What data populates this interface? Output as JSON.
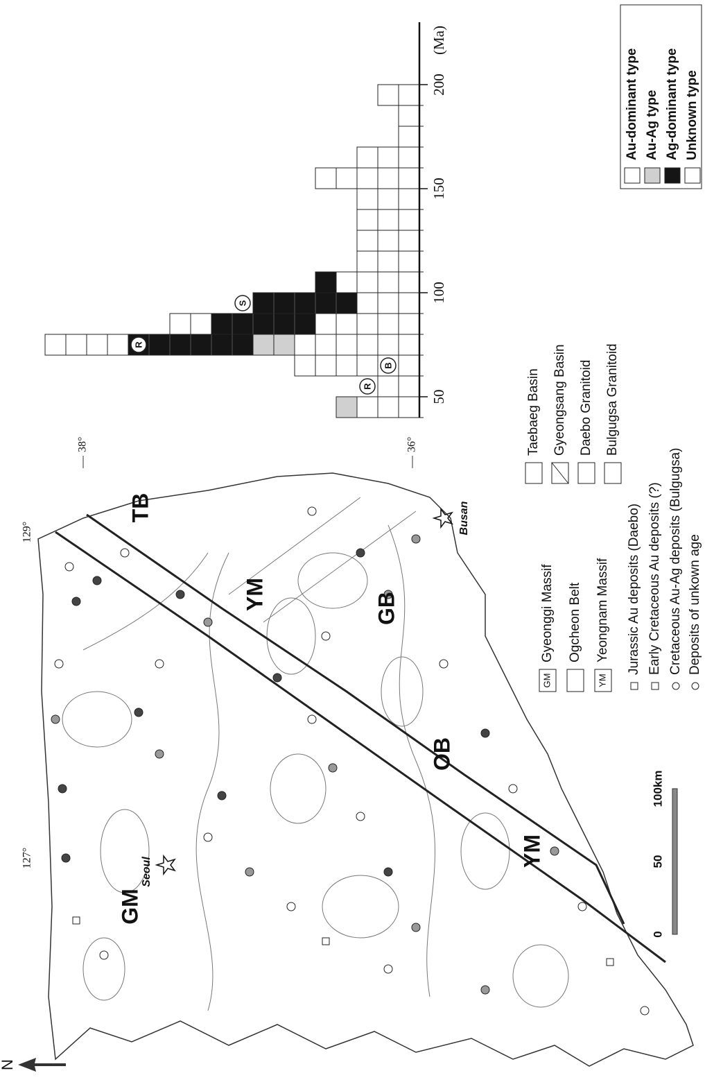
{
  "chart_data": {
    "type": "histogram",
    "xlabel": "(Ma)",
    "bins": [
      40,
      50,
      60,
      70,
      80,
      90,
      100,
      110,
      120,
      130,
      140,
      150,
      160,
      170,
      180,
      190,
      200
    ],
    "xlim": [
      40,
      230
    ],
    "xticks": [
      50,
      100,
      150,
      200
    ],
    "series": [
      {
        "name": "Au-dominant type",
        "color": "#ffffff",
        "values": [
          3,
          2,
          5,
          6,
          5,
          3,
          4,
          3,
          3,
          3,
          3,
          5,
          3,
          1,
          1,
          2
        ]
      },
      {
        "name": "Au-Ag type",
        "color": "#d0d0d0",
        "values": [
          1,
          0,
          0,
          2,
          0,
          0,
          0,
          0,
          0,
          0,
          0,
          0,
          0,
          0,
          0,
          0
        ]
      },
      {
        "name": "Ag-dominant type",
        "color": "#151515",
        "values": [
          0,
          0,
          0,
          6,
          5,
          5,
          1,
          0,
          0,
          0,
          0,
          0,
          0,
          0,
          0,
          0
        ]
      },
      {
        "name": "Unknown type",
        "color": "#ffffff",
        "values": [
          0,
          0,
          1,
          4,
          2,
          0,
          0,
          0,
          0,
          0,
          0,
          0,
          0,
          0,
          0,
          0
        ]
      }
    ],
    "annotations": [
      {
        "text": "R",
        "x": 55,
        "y": 2.5
      },
      {
        "text": "B",
        "x": 65,
        "y": 1.5
      },
      {
        "text": "R",
        "x": 75,
        "y": 13.5
      },
      {
        "text": "S",
        "x": 95,
        "y": 8.5
      }
    ]
  },
  "map": {
    "north": "N",
    "longitude_labels": [
      "127°",
      "129°"
    ],
    "latitude_labels": [
      "38°",
      "36°"
    ],
    "regions": [
      "GM",
      "TB",
      "YM",
      "OB",
      "YM",
      "GB"
    ],
    "cities": [
      "Seoul",
      "Busan"
    ],
    "scale_labels": [
      "0",
      "50",
      "100km"
    ],
    "legend": {
      "geology": [
        {
          "abbr": "GM",
          "label": "Gyeonggi Massif"
        },
        {
          "label": "Ogcheon Belt"
        },
        {
          "abbr": "YM",
          "label": "Yeongnam Massif"
        },
        {
          "label": "Taebaeg Basin"
        },
        {
          "label": "Gyeongsang Basin"
        },
        {
          "label": "Daebo Granitoid"
        },
        {
          "label": "Bulgugsa Granitoid"
        }
      ],
      "deposits": [
        "Jurassic Au deposits (Daebo)",
        "Early Cretaceous Au deposits (?)",
        "Cretaceous Au-Ag deposits (Bulgugsa)",
        "Deposits of unkown age"
      ]
    }
  }
}
